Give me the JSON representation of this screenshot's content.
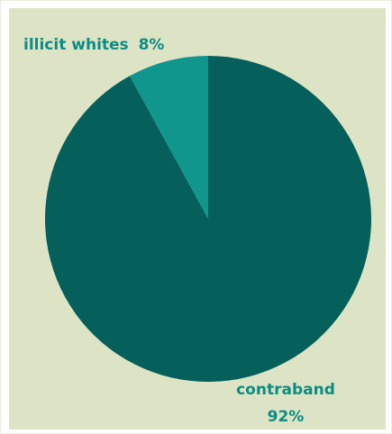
{
  "chart_data": {
    "type": "pie",
    "title": "",
    "slices": [
      {
        "label_text": "illicit whites",
        "percent_text": "8%",
        "value": 8,
        "color": "#11968e"
      },
      {
        "label_text": "contraband",
        "percent_text": "92%",
        "value": 92,
        "color": "#055f5a"
      }
    ],
    "background": "#dde4c6",
    "label_color": "#0d8c83"
  }
}
